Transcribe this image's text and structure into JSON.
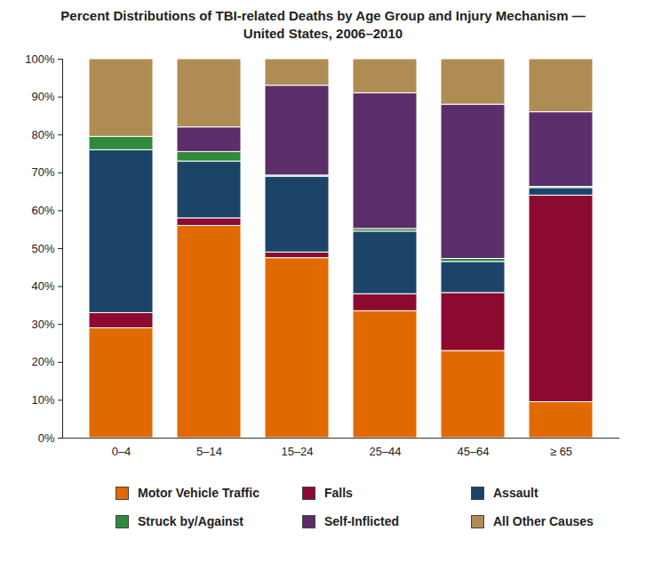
{
  "chart_data": {
    "type": "bar",
    "title": "Percent Distributions of TBI-related Deaths by Age Group and Injury Mechanism — United States, 2006–2010",
    "stacked": true,
    "grid": false,
    "legend": "bottom",
    "categories": [
      "0–4",
      "5–14",
      "15–24",
      "25–44",
      "45–64",
      "≥ 65"
    ],
    "ylim": [
      0,
      100
    ],
    "yticks": [
      {
        "value": 0,
        "label": "0%"
      },
      {
        "value": 10,
        "label": "10%"
      },
      {
        "value": 20,
        "label": "20%"
      },
      {
        "value": 30,
        "label": "30%"
      },
      {
        "value": 40,
        "label": "40%"
      },
      {
        "value": 50,
        "label": "50%"
      },
      {
        "value": 60,
        "label": "60%"
      },
      {
        "value": 70,
        "label": "70%"
      },
      {
        "value": 80,
        "label": "80%"
      },
      {
        "value": 90,
        "label": "90%"
      },
      {
        "value": 100,
        "label": "100%"
      }
    ],
    "series": [
      {
        "name": "Motor Vehicle Traffic",
        "color": "#e06a00",
        "values": [
          29,
          56,
          47.5,
          33.5,
          23,
          9.5
        ]
      },
      {
        "name": "Falls",
        "color": "#8c0a30",
        "values": [
          4,
          2,
          1.5,
          4.5,
          15.3,
          54.5
        ]
      },
      {
        "name": "Assault",
        "color": "#1b4468",
        "values": [
          43,
          15,
          20,
          16.5,
          8.2,
          2
        ]
      },
      {
        "name": "Struck by/Against",
        "color": "#2f8a3c",
        "values": [
          3.5,
          2.5,
          0.3,
          0.7,
          0.8,
          0.3
        ]
      },
      {
        "name": "Self-Inflicted",
        "color": "#5c2d6b",
        "values": [
          0,
          6.5,
          23.7,
          35.8,
          40.7,
          19.7
        ]
      },
      {
        "name": "All Other Causes",
        "color": "#b08c55",
        "values": [
          20.5,
          18,
          7,
          9,
          12,
          14
        ]
      }
    ]
  }
}
